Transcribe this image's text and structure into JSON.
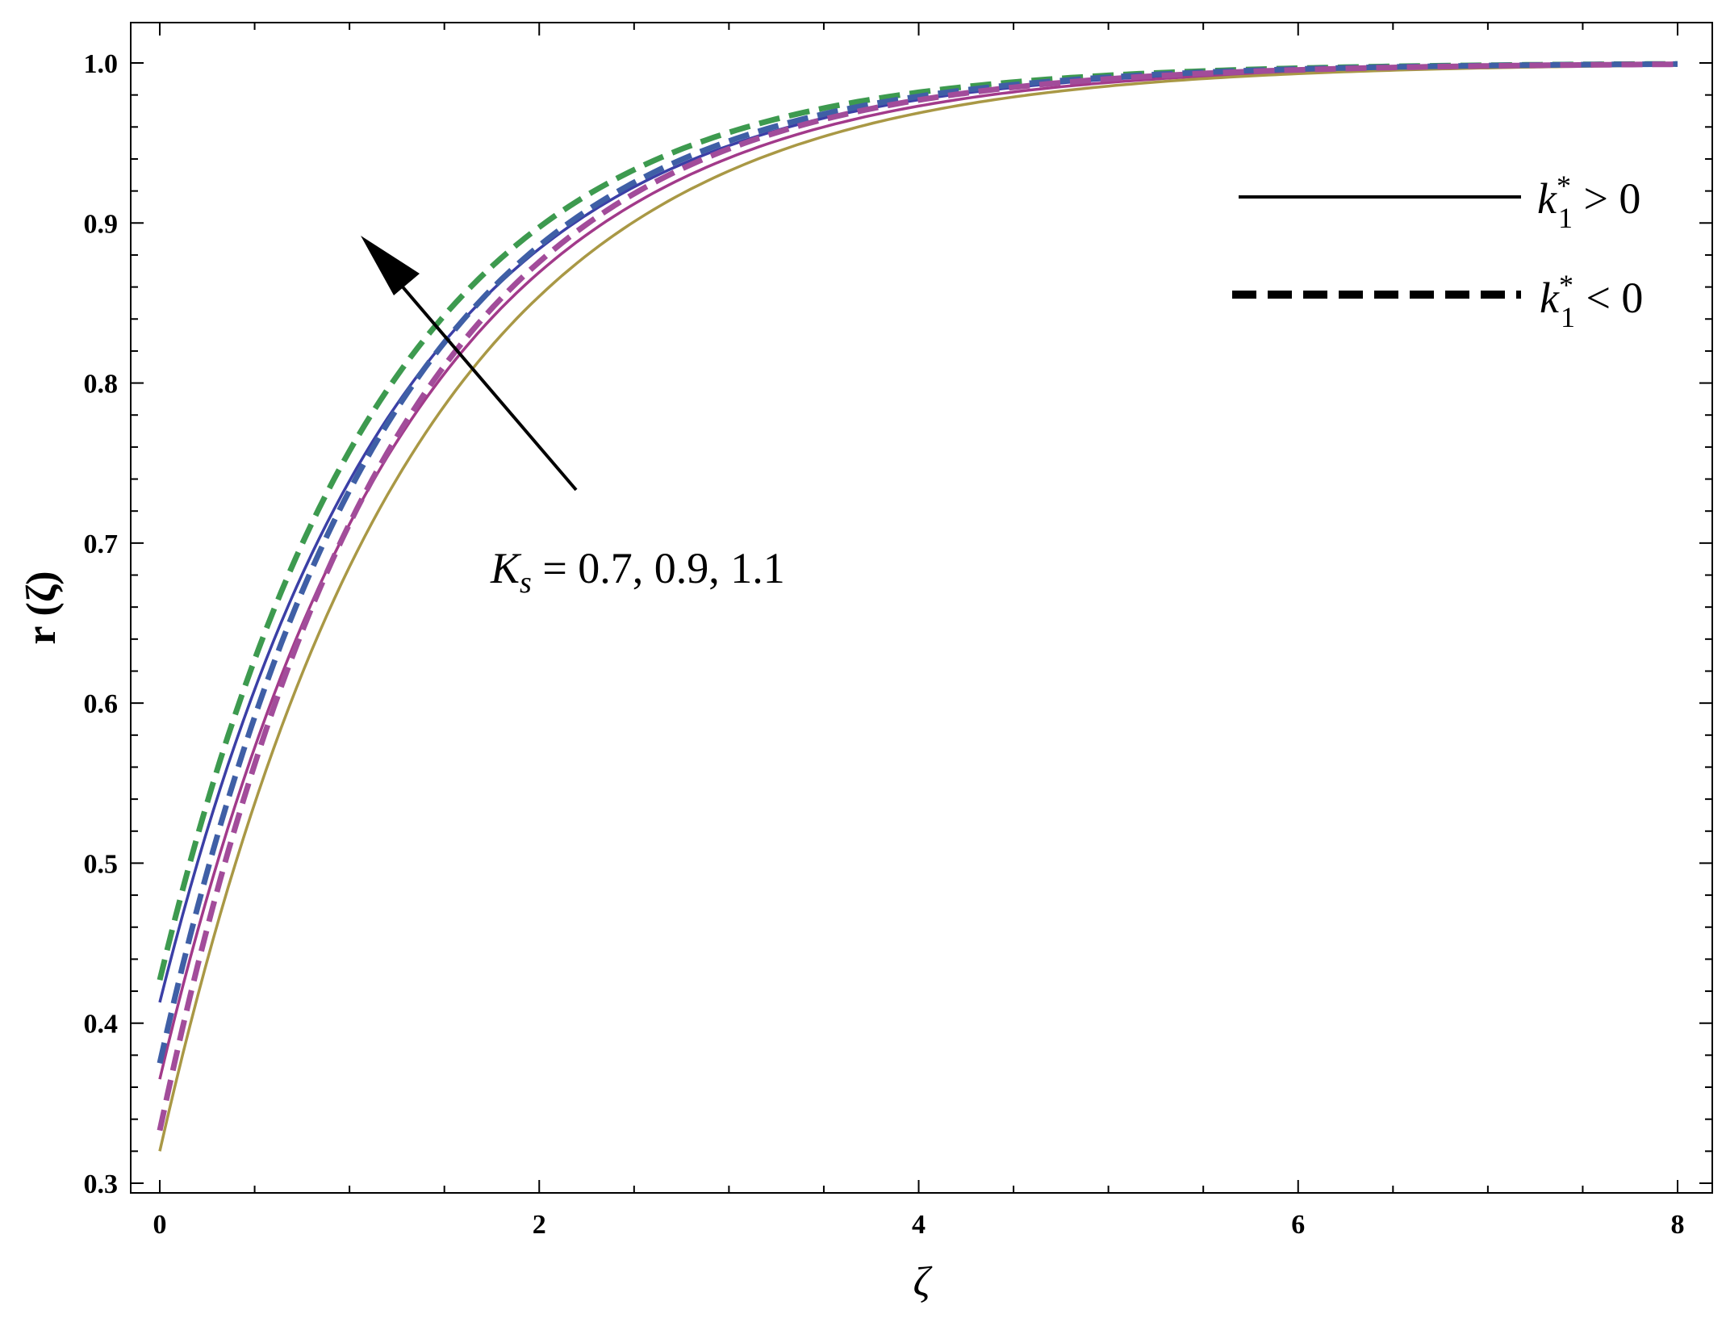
{
  "chart_data": {
    "type": "line",
    "xlabel": "ζ",
    "ylabel": "r (ζ)",
    "xlim": [
      0,
      8
    ],
    "ylim": [
      0.3,
      1.0
    ],
    "x_ticks": [
      0,
      2,
      4,
      6,
      8
    ],
    "y_ticks": [
      0.3,
      0.4,
      0.5,
      0.6,
      0.7,
      0.8,
      0.9,
      1.0
    ],
    "grid": false,
    "legend_position": "top-right",
    "legend": [
      {
        "style": "solid",
        "label": {
          "base": "k",
          "sub": "1",
          "sup": "*",
          "rest": " > 0"
        }
      },
      {
        "style": "dashed",
        "label": {
          "base": "k",
          "sub": "1",
          "sup": "*",
          "rest": " < 0"
        }
      }
    ],
    "annotation": {
      "base": "K",
      "sub": "s",
      "rest": " = 0.7, 0.9, 1.1"
    },
    "colors": {
      "blue": "#3b3fa6",
      "purple": "#a23a8a",
      "olive": "#a99845",
      "green": "#3d9a4f",
      "steelblue": "#3f5fa6",
      "magenta": "#a24c9a"
    },
    "series": [
      {
        "style": "solid",
        "color": "#3b3fa6",
        "y0": 0.413,
        "k": 0.81
      },
      {
        "style": "solid",
        "color": "#a23a8a",
        "y0": 0.365,
        "k": 0.79
      },
      {
        "style": "solid",
        "color": "#a99845",
        "y0": 0.32,
        "k": 0.77
      },
      {
        "style": "dashed",
        "color": "#3d9a4f",
        "y0": 0.427,
        "k": 0.86
      },
      {
        "style": "dashed",
        "color": "#3f5fa6",
        "y0": 0.375,
        "k": 0.85
      },
      {
        "style": "dashed",
        "color": "#a24c9a",
        "y0": 0.333,
        "k": 0.84
      }
    ]
  }
}
